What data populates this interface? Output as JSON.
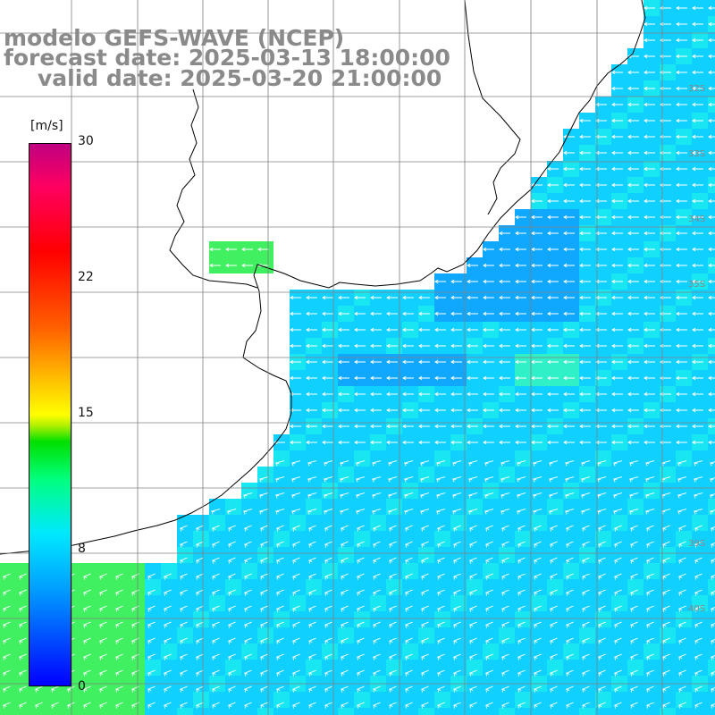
{
  "header": {
    "line1": "modelo GEFS-WAVE (NCEP)",
    "line2": "forecast date: 2025-03-13 18:00:00",
    "line3": "valid date: 2025-03-20 21:00:00"
  },
  "colorbar": {
    "unit": "[m/s]",
    "ticks": [
      "30",
      "22",
      "15",
      "8",
      "0"
    ],
    "colors": [
      "#0000ff",
      "#00a0ff",
      "#00e8ff",
      "#00ff80",
      "#00e000",
      "#ffff00",
      "#ff6000",
      "#ff0000",
      "#c00080"
    ]
  },
  "latitude_labels": [
    "32S",
    "33S",
    "34S",
    "35S",
    "39S",
    "40S"
  ],
  "map": {
    "land_color": "#ffffff",
    "coast_color": "#000000",
    "grid_color": "#808080",
    "arrow_color": "#ffffff",
    "field_colors": {
      "calm_green": "#40f060",
      "light_cyan": "#18e6f0",
      "mid_cyan": "#10d0ff",
      "deep_blue": "#10a8ff"
    }
  }
}
